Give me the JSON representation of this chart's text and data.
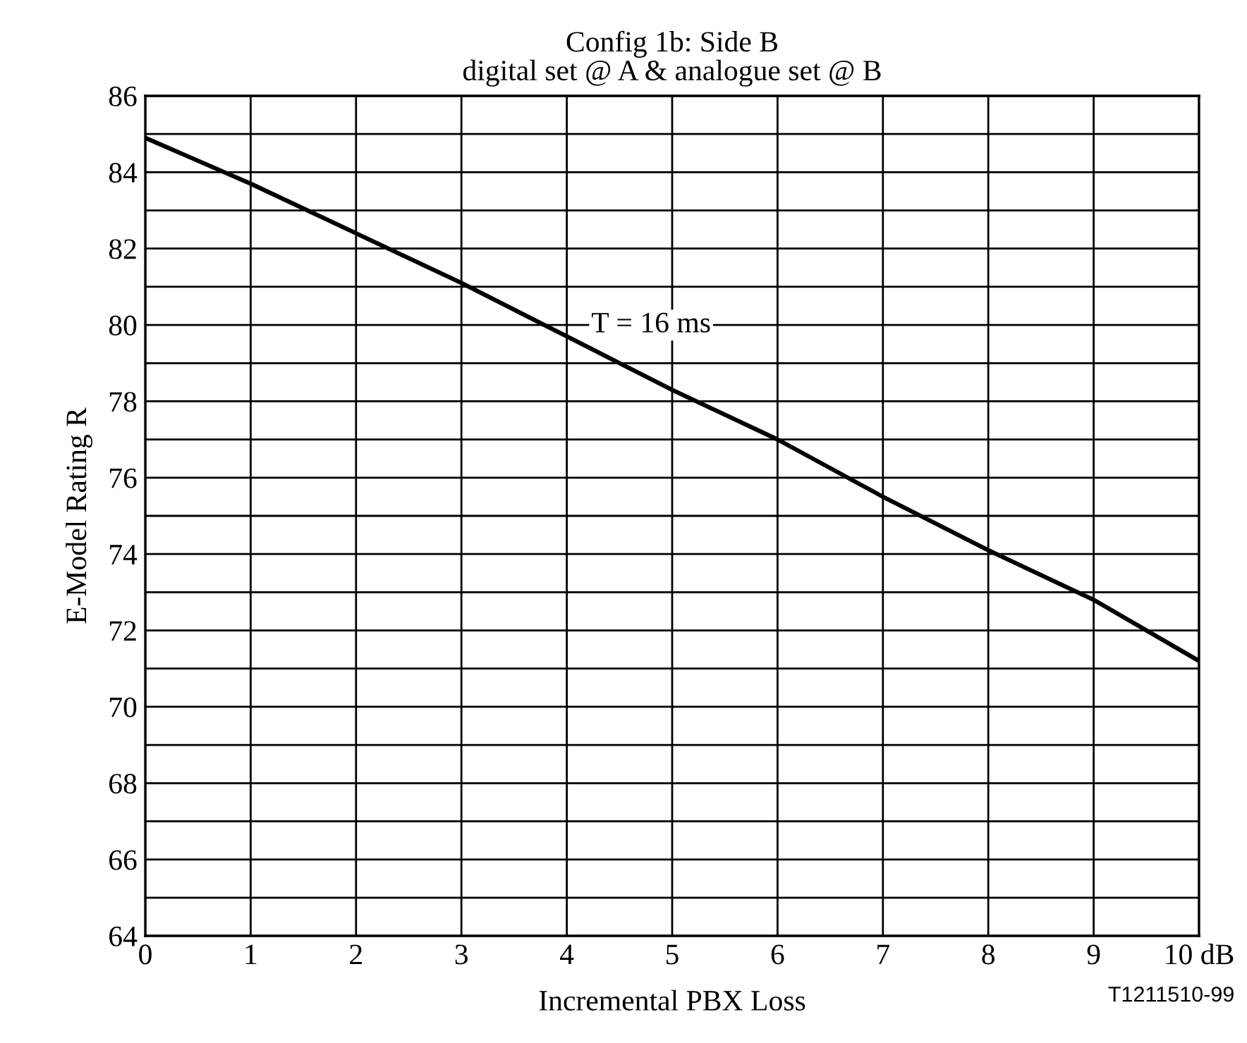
{
  "chart_data": {
    "type": "line",
    "title": "Config 1b: Side B\ndigital set @ A & analogue set @ B",
    "xlabel": "Incremental PBX Loss",
    "ylabel": "E-Model Rating R",
    "x": [
      0,
      1,
      2,
      3,
      4,
      5,
      6,
      7,
      8,
      9,
      10
    ],
    "series": [
      {
        "color": "#000000",
        "values": [
          84.9,
          83.7,
          82.4,
          81.1,
          79.7,
          78.3,
          77.0,
          75.5,
          74.1,
          72.8,
          71.2
        ]
      }
    ],
    "xlim": [
      0,
      10
    ],
    "xticks": [
      0,
      1,
      2,
      3,
      4,
      5,
      6,
      7,
      8,
      9,
      {
        "value": 10,
        "label": "10 dB"
      }
    ],
    "ylim": [
      64,
      86
    ],
    "yticks": [
      64,
      {
        "value": 65,
        "label": null
      },
      66,
      {
        "value": 67,
        "label": null
      },
      68,
      {
        "value": 69,
        "label": null
      },
      70,
      {
        "value": 71,
        "label": null
      },
      72,
      {
        "value": 73,
        "label": null
      },
      74,
      {
        "value": 75,
        "label": null
      },
      76,
      {
        "value": 77,
        "label": null
      },
      78,
      {
        "value": 79,
        "label": null
      },
      80,
      {
        "value": 81,
        "label": null
      },
      82,
      {
        "value": 83,
        "label": null
      },
      84,
      {
        "value": 85,
        "label": null
      },
      86
    ],
    "grid": true,
    "marker": "none",
    "line_style": "solid",
    "annotations": [
      "T = 16 ms",
      "T1211510-99"
    ]
  }
}
